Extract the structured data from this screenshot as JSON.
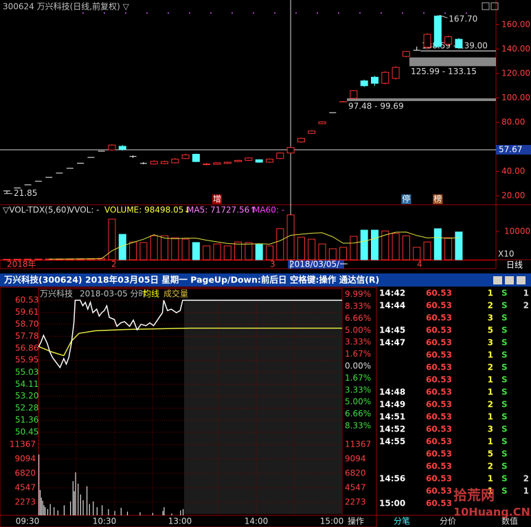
{
  "kline": {
    "title": "300624 万兴科技(日线,前复权) ▽",
    "ylim": [
      12.7,
      180.1
    ],
    "yticks": [
      {
        "value": 20,
        "label": "20.00"
      },
      {
        "value": 40,
        "label": "40.00"
      },
      {
        "value": 80,
        "label": "80.00"
      },
      {
        "value": 100,
        "label": "100.00"
      },
      {
        "value": 120,
        "label": "120.00"
      },
      {
        "value": 140,
        "label": "140.00"
      },
      {
        "value": 160,
        "label": "160.00"
      }
    ],
    "open": [
      24.0,
      26.4,
      29.0,
      31.9,
      35.1,
      38.6,
      42.5,
      46.7,
      51.4,
      56.5,
      57.5,
      60.5,
      52.2,
      46.5,
      46.0,
      46.3,
      47.0,
      50.5,
      54.0,
      45.5,
      45.8,
      46.5,
      48.0,
      49.0,
      49.5,
      47.5,
      50.5,
      55.0,
      64.0,
      71.0,
      79.0,
      88.0,
      96.8,
      99.7,
      114.0,
      117.0,
      112.0,
      116.0,
      134.0,
      139.0,
      141.5,
      167.0,
      144.0,
      148.0
    ],
    "close": [
      24.0,
      26.4,
      29.0,
      31.9,
      35.1,
      38.6,
      42.5,
      46.7,
      51.4,
      56.5,
      61.5,
      58.0,
      52.2,
      46.5,
      48.2,
      48.0,
      50.0,
      53.5,
      48.0,
      46.0,
      47.0,
      47.5,
      49.0,
      51.0,
      47.5,
      50.0,
      55.0,
      59.5,
      67.0,
      73.0,
      80.5,
      88.0,
      97.0,
      106.0,
      110.0,
      112.0,
      121.0,
      125.0,
      138.0,
      139.0,
      152.0,
      142.0,
      150.0,
      141.0
    ],
    "high": [
      24.0,
      26.4,
      29.0,
      31.9,
      35.1,
      38.6,
      42.5,
      46.7,
      51.4,
      56.5,
      62.2,
      61.5,
      53.0,
      47.5,
      49.0,
      48.8,
      51.0,
      54.5,
      54.5,
      47.0,
      47.5,
      48.0,
      49.5,
      51.5,
      50.0,
      50.5,
      55.5,
      60.5,
      67.5,
      73.5,
      81.0,
      88.0,
      97.48,
      106.5,
      115.0,
      118.0,
      122.0,
      125.99,
      138.59,
      142.0,
      153.0,
      167.7,
      151.0,
      149.0
    ],
    "low": [
      21.85,
      26.4,
      29.0,
      31.9,
      35.1,
      38.6,
      42.5,
      46.7,
      51.4,
      56.5,
      56.8,
      57.0,
      51.0,
      45.8,
      45.5,
      45.8,
      46.5,
      50.0,
      47.5,
      45.0,
      45.5,
      46.0,
      47.5,
      48.5,
      47.0,
      47.0,
      50.0,
      54.5,
      63.5,
      70.5,
      78.5,
      88.0,
      96.5,
      99.69,
      109.0,
      110.0,
      111.0,
      115.0,
      133.15,
      139.0,
      139.5,
      141.0,
      143.0,
      140.0
    ],
    "current": {
      "value": 57.67,
      "label": "57.67"
    },
    "high_mark": {
      "value": 167.7,
      "label": "167.70"
    },
    "low_mark": {
      "value": 21.85,
      "label": "21.85"
    },
    "gaps": [
      {
        "low": 97.48,
        "high": 99.69,
        "label": "97.48 - 99.69"
      },
      {
        "low": 125.99,
        "high": 133.15,
        "label": "125.99 - 133.15"
      },
      {
        "low": 138.59,
        "high": 139.0,
        "label": "138.59 - 139.00"
      }
    ],
    "markers": [
      "增",
      "停",
      "榜"
    ]
  },
  "volume": {
    "title": "▽VOL-TDX(5,60)",
    "vvol": "VVOL: -",
    "volume": "VOLUME: 98498.05↓",
    "ma5": "MA5: 71727.56↑",
    "ma60": "MA60: -",
    "unit": "X10",
    "ylim": [
      0,
      19500
    ],
    "yticks": [
      10000
    ],
    "values": [
      150,
      180,
      200,
      220,
      250,
      280,
      300,
      350,
      400,
      500,
      14400,
      9000,
      6300,
      6100,
      8500,
      8500,
      7800,
      7300,
      6100,
      4900,
      5600,
      4900,
      6300,
      6100,
      5400,
      4900,
      11000,
      15900,
      8000,
      7300,
      5600,
      3900,
      4400,
      8300,
      10500,
      10500,
      10200,
      9300,
      8500,
      4400,
      6300,
      11000,
      7800,
      9849.8
    ]
  },
  "timeline": {
    "labels": [
      "2018年",
      "2",
      "3",
      "4"
    ],
    "cursor": "2018/03/05/一",
    "period": "日线"
  },
  "window": {
    "title": "万兴科技(300624) 2018年03月05日 星期一 PageUp/Down:前后日 空格键:操作 通达信(R)"
  },
  "intraday": {
    "name": "万兴科技",
    "date": "2018-03-05 分时",
    "avg_label": "均线",
    "vol_label": "成交量",
    "ylim": [
      50.45,
      60.53
    ],
    "price_labels": [
      60.53,
      59.61,
      {
        "value": 58.7,
        "label": "58.70"
      },
      57.78,
      56.86,
      55.95,
      55.03,
      54.11,
      {
        "value": 53.2,
        "label": "53.20"
      },
      52.28,
      51.36,
      50.45
    ],
    "pct_labels": [
      {
        "value": 9.99,
        "label": "9.99%"
      },
      {
        "value": 8.33,
        "label": "8.33%"
      },
      {
        "value": 6.66,
        "label": "6.66%"
      },
      {
        "value": 5.0,
        "label": "5.00%"
      },
      {
        "value": 3.33,
        "label": "3.33%"
      },
      {
        "value": 1.67,
        "label": "1.67%"
      },
      {
        "value": 0,
        "label": "0.00%"
      },
      {
        "value": -1.67,
        "label": "1.67%"
      },
      {
        "value": -3.33,
        "label": "3.33%"
      },
      {
        "value": -5.0,
        "label": "5.00%"
      },
      {
        "value": -6.66,
        "label": "6.66%"
      },
      {
        "value": -8.33,
        "label": "8.33%"
      }
    ],
    "vol_ylim": [
      0,
      11367
    ],
    "vol_labels": [
      11367,
      9094,
      6820,
      4547,
      2273
    ],
    "time_labels": [
      "09:30",
      "10:30",
      "13:00",
      "14:00",
      "15:00"
    ],
    "price": {
      "minutes": [
        0,
        2,
        4,
        7,
        9,
        11,
        13,
        15,
        17,
        20,
        22,
        24,
        26,
        28,
        29,
        33,
        35,
        37,
        39,
        41,
        43,
        46,
        48,
        50,
        52,
        54,
        56,
        60,
        62,
        65,
        68,
        72,
        75,
        78,
        81,
        85,
        88,
        91,
        94,
        98,
        99,
        102,
        105,
        109,
        112,
        114,
        240
      ],
      "values": [
        56.96,
        57.33,
        57.85,
        57.22,
        56.59,
        56.17,
        55.91,
        55.65,
        55.39,
        56.07,
        55.65,
        56.17,
        57.22,
        58.8,
        60.53,
        60.53,
        60.11,
        60.37,
        59.85,
        60.37,
        59.58,
        59.85,
        59.32,
        59.58,
        59.74,
        60.11,
        59.22,
        59.06,
        58.54,
        58.8,
        58.9,
        58.54,
        59.01,
        58.27,
        58.69,
        58.59,
        58.8,
        58.59,
        59.01,
        59.58,
        60.53,
        59.74,
        59.85,
        59.58,
        59.74,
        60.53,
        60.53
      ]
    },
    "avg": {
      "minutes": [
        0,
        10,
        20,
        26,
        32,
        45,
        70,
        120,
        240
      ],
      "values": [
        57.0,
        56.6,
        56.3,
        57.4,
        58.0,
        58.2,
        58.3,
        58.4,
        58.4
      ]
    },
    "volume": {
      "minutes": [
        0,
        1,
        2,
        3,
        4,
        5,
        7,
        9,
        12,
        15,
        20,
        25,
        27,
        28,
        29,
        31,
        33,
        35,
        38,
        40,
        43,
        46,
        50,
        55,
        60,
        65,
        70,
        80,
        90,
        98,
        99,
        105,
        112,
        114
      ],
      "values": [
        9800,
        4200,
        3000,
        2500,
        1800,
        1500,
        1200,
        2000,
        1500,
        1000,
        1800,
        2400,
        5600,
        4000,
        7000,
        5200,
        3500,
        2600,
        4800,
        2000,
        2400,
        1500,
        1800,
        1200,
        900,
        1400,
        800,
        700,
        600,
        900,
        1500,
        500,
        1000,
        1200
      ]
    }
  },
  "trades": [
    [
      "14:42",
      60.53,
      1,
      "S",
      1
    ],
    [
      "14:44",
      60.53,
      2,
      "S",
      2
    ],
    [
      null,
      60.53,
      3,
      "S",
      null
    ],
    [
      "14:45",
      60.53,
      5,
      "S",
      null
    ],
    [
      "14:47",
      60.53,
      3,
      "S",
      null
    ],
    [
      null,
      60.53,
      1,
      "S",
      null
    ],
    [
      null,
      60.53,
      2,
      "S",
      null
    ],
    [
      null,
      60.53,
      1,
      "S",
      null
    ],
    [
      "14:48",
      60.53,
      1,
      "S",
      null
    ],
    [
      "14:49",
      60.53,
      2,
      "S",
      null
    ],
    [
      "14:51",
      60.53,
      1,
      "S",
      null
    ],
    [
      "14:52",
      60.53,
      3,
      "S",
      null
    ],
    [
      "14:55",
      60.53,
      1,
      "S",
      null
    ],
    [
      null,
      60.53,
      5,
      "S",
      null
    ],
    [
      null,
      60.53,
      2,
      "S",
      null
    ],
    [
      "14:56",
      60.53,
      1,
      "S",
      2
    ],
    [
      null,
      60.53,
      1,
      "S",
      1
    ],
    [
      "15:00",
      60.53,
      null,
      null,
      null
    ]
  ],
  "tabs": [
    "操作",
    "分笔",
    "分价",
    "数值"
  ],
  "watermark": {
    "brand": "拾荒网",
    "site": "10Huang.CN"
  }
}
